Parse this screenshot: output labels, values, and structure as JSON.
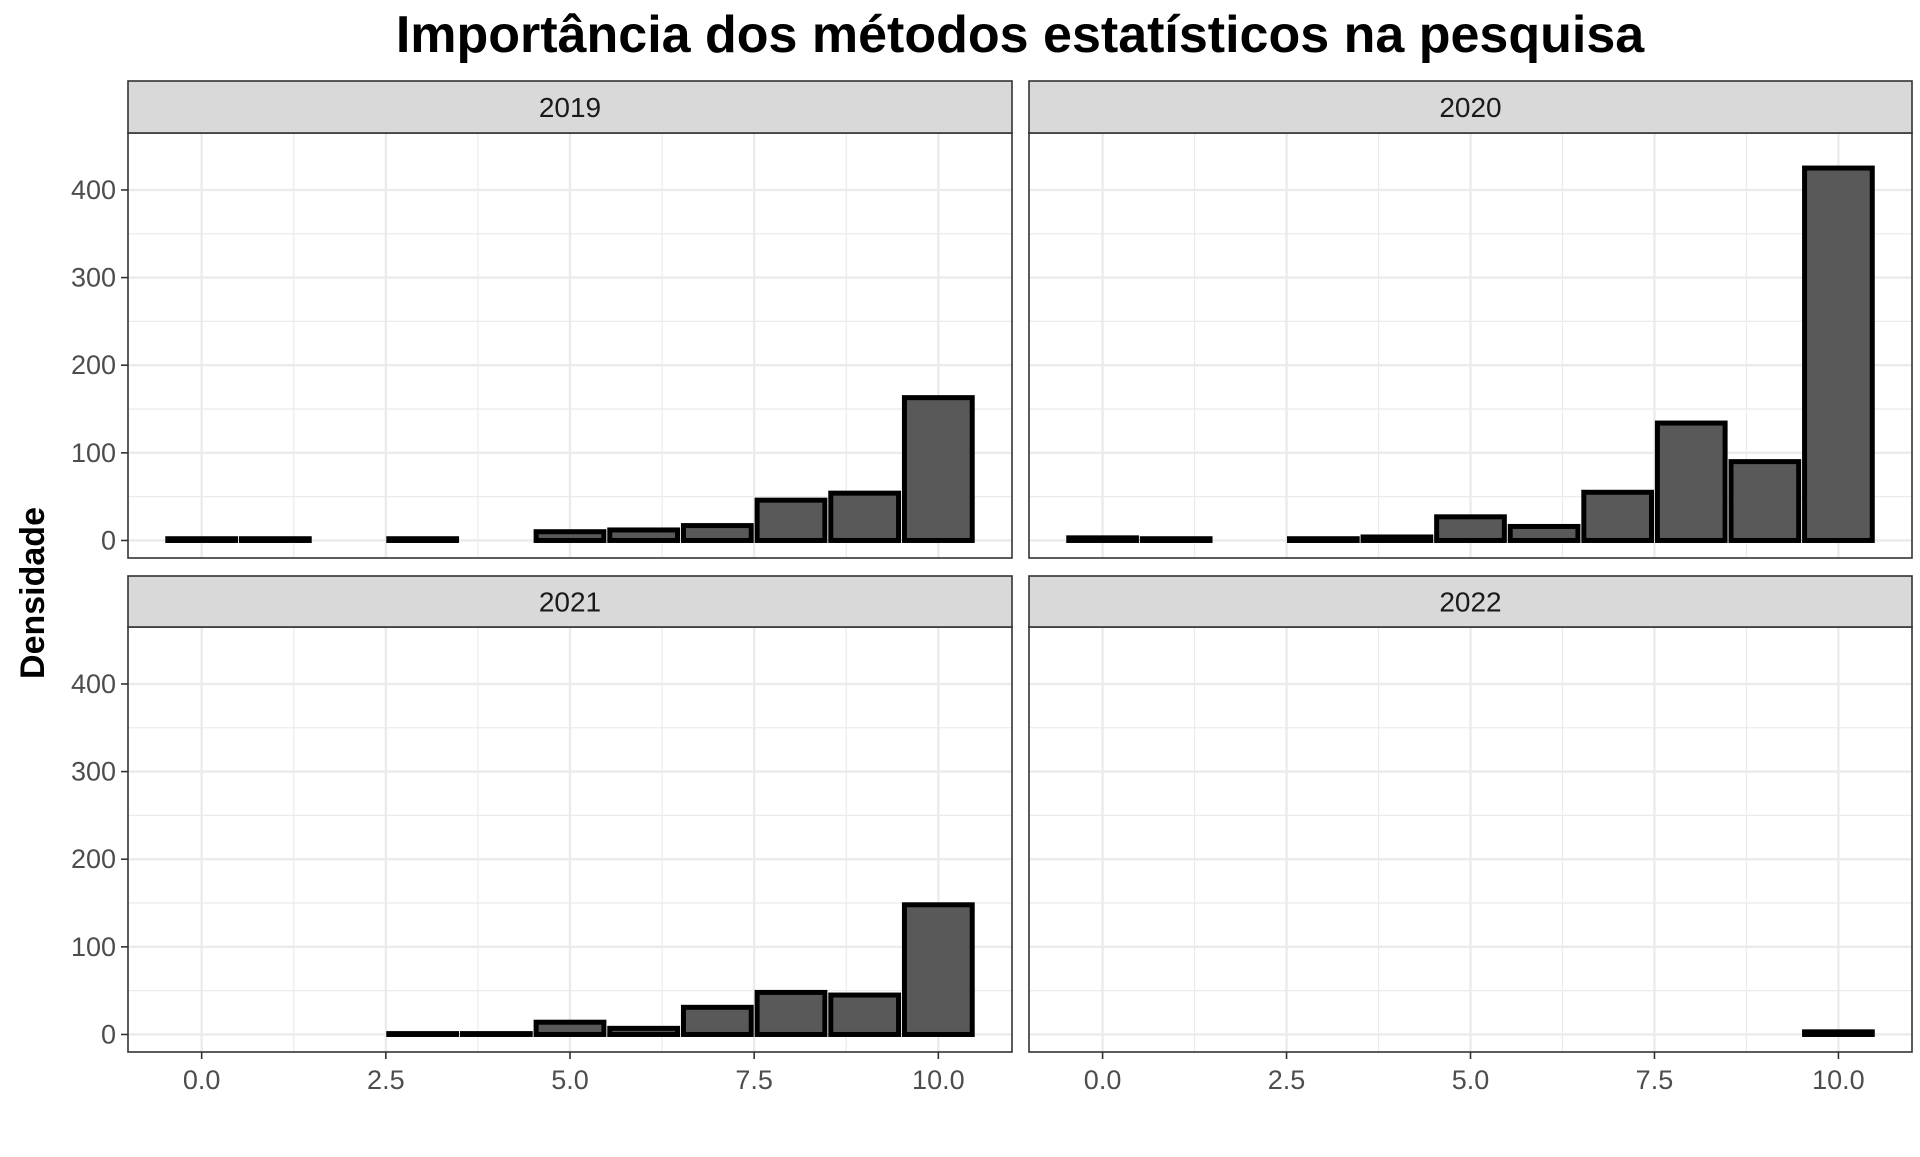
{
  "chart_data": {
    "type": "bar",
    "title": "Importância dos métodos estatísticos na pesquisa",
    "xlabel": "",
    "ylabel": "Densidade",
    "xlim": [
      -1,
      11
    ],
    "ylim": [
      -20,
      465
    ],
    "x_ticks": [
      0,
      2.5,
      5,
      7.5,
      10
    ],
    "x_tick_labels": [
      "0.0",
      "2.5",
      "5.0",
      "7.5",
      "10.0"
    ],
    "y_ticks": [
      0,
      100,
      200,
      300,
      400
    ],
    "y_tick_labels": [
      "0",
      "100",
      "200",
      "300",
      "400"
    ],
    "grid": true,
    "legend": "none",
    "colors": {
      "bar_fill": "#595959",
      "bar_stroke": "#000000",
      "strip_fill": "#d9d9d9",
      "grid": "#ebebeb",
      "panel_border": "#333333"
    },
    "facets": [
      {
        "label": "2019",
        "x": [
          0,
          1,
          3,
          5,
          6,
          7,
          8,
          9,
          10
        ],
        "values": [
          2,
          2,
          2,
          10,
          12,
          17,
          46,
          54,
          163
        ]
      },
      {
        "label": "2020",
        "x": [
          0,
          1,
          3,
          4,
          5,
          6,
          7,
          8,
          9,
          10
        ],
        "values": [
          3,
          2,
          2,
          4,
          27,
          16,
          55,
          134,
          90,
          425
        ]
      },
      {
        "label": "2021",
        "x": [
          3,
          4,
          5,
          6,
          7,
          8,
          9,
          10
        ],
        "values": [
          1,
          1,
          14,
          7,
          31,
          48,
          45,
          148
        ]
      },
      {
        "label": "2022",
        "x": [
          10
        ],
        "values": [
          3
        ]
      }
    ]
  }
}
